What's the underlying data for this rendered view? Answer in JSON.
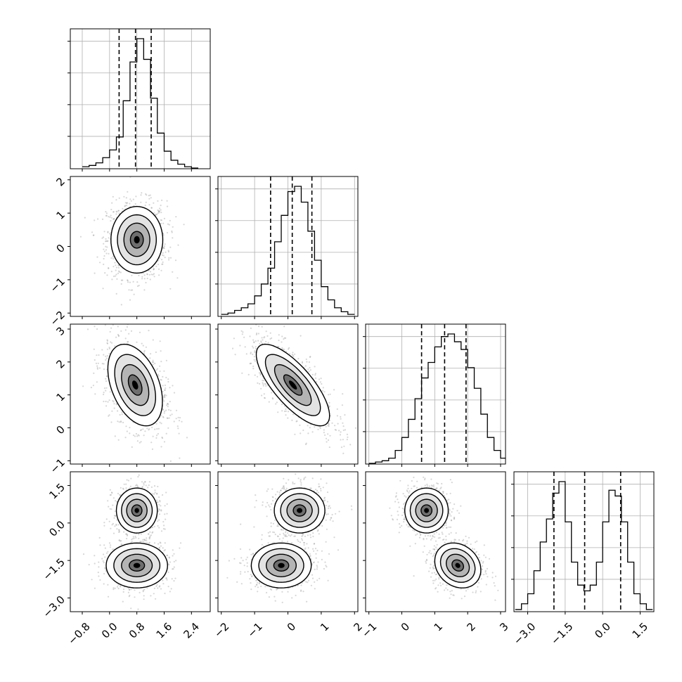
{
  "chart_data": {
    "type": "corner",
    "title": "",
    "parameters": 4,
    "axis_ranges": [
      [
        -1.15,
        2.95
      ],
      [
        -2.1,
        2.1
      ],
      [
        -1.1,
        3.15
      ],
      [
        -3.55,
        2.05
      ]
    ],
    "ticks": [
      [
        -0.8,
        0.0,
        0.8,
        1.6,
        2.4
      ],
      [
        -2,
        -1,
        0,
        1,
        2
      ],
      [
        -1,
        0,
        1,
        2,
        3
      ],
      [
        -3.0,
        -1.5,
        0.0,
        1.5
      ]
    ],
    "tick_labels": [
      [
        "−0.8",
        "0.0",
        "0.8",
        "1.6",
        "2.4"
      ],
      [
        "−2",
        "−1",
        "0",
        "1",
        "2"
      ],
      [
        "−1",
        "0",
        "1",
        "2",
        "3"
      ],
      [
        "−3.0",
        "−1.5",
        "0.0",
        "1.5"
      ]
    ],
    "bottom_tick_labels_param4": [
      "−3.0",
      "−1.5",
      "0.0",
      "1.5"
    ],
    "quantile_lines": [
      [
        0.28,
        0.76,
        1.22
      ],
      [
        -0.52,
        0.13,
        0.72
      ],
      [
        0.6,
        1.3,
        1.95
      ],
      [
        -1.95,
        -0.72,
        0.72
      ]
    ],
    "grid": true,
    "marginals": [
      {
        "param": 1,
        "bin_edges": [
          -0.8,
          -0.6,
          -0.4,
          -0.2,
          0.0,
          0.2,
          0.4,
          0.6,
          0.8,
          1.0,
          1.2,
          1.4,
          1.6,
          1.8,
          2.0,
          2.2,
          2.4,
          2.6
        ],
        "counts": [
          1,
          2,
          4,
          8,
          14,
          24,
          52,
          82,
          100,
          84,
          54,
          27,
          13,
          6,
          3,
          1,
          0
        ]
      },
      {
        "param": 2,
        "bin_edges": [
          -2.0,
          -1.8,
          -1.6,
          -1.4,
          -1.2,
          -1.0,
          -0.8,
          -0.6,
          -0.4,
          -0.2,
          0.0,
          0.2,
          0.4,
          0.6,
          0.8,
          1.0,
          1.2,
          1.4,
          1.6,
          1.8,
          2.0
        ],
        "counts": [
          1,
          2,
          4,
          6,
          9,
          15,
          24,
          36,
          56,
          76,
          94,
          98,
          86,
          64,
          42,
          22,
          12,
          6,
          3,
          1
        ]
      },
      {
        "param": 3,
        "bin_edges": [
          -1.0,
          -0.8,
          -0.6,
          -0.4,
          -0.2,
          0.0,
          0.2,
          0.4,
          0.6,
          0.8,
          1.0,
          1.2,
          1.4,
          1.6,
          1.8,
          2.0,
          2.2,
          2.4,
          2.6,
          2.8,
          3.0,
          3.2
        ],
        "counts": [
          0,
          1,
          2,
          4,
          10,
          20,
          34,
          50,
          66,
          78,
          90,
          98,
          100,
          94,
          88,
          74,
          58,
          38,
          20,
          10,
          4
        ]
      },
      {
        "param": 4,
        "bin_edges": [
          -3.5,
          -3.25,
          -3.0,
          -2.75,
          -2.5,
          -2.25,
          -2.0,
          -1.75,
          -1.5,
          -1.25,
          -1.0,
          -0.75,
          -0.5,
          -0.25,
          0.0,
          0.25,
          0.5,
          0.75,
          1.0,
          1.25,
          1.5,
          1.75,
          2.0
        ],
        "counts": [
          1,
          5,
          12,
          28,
          48,
          64,
          82,
          90,
          62,
          34,
          18,
          14,
          18,
          34,
          62,
          84,
          80,
          62,
          34,
          12,
          5,
          1
        ]
      }
    ],
    "joint_distributions": [
      {
        "x_param": 1,
        "y_param": 2,
        "modes": [
          {
            "cx": 0.8,
            "cy": 0.2,
            "sx": 0.38,
            "sy": 0.5,
            "rho": 0.0
          }
        ]
      },
      {
        "x_param": 1,
        "y_param": 3,
        "modes": [
          {
            "cx": 0.75,
            "cy": 1.3,
            "sx": 0.4,
            "sy": 0.62,
            "rho": -0.4
          }
        ]
      },
      {
        "x_param": 2,
        "y_param": 3,
        "modes": [
          {
            "cx": 0.15,
            "cy": 1.3,
            "sx": 0.55,
            "sy": 0.62,
            "rho": -0.75
          }
        ]
      },
      {
        "x_param": 1,
        "y_param": 4,
        "modes": [
          {
            "cx": 0.8,
            "cy": 0.5,
            "sx": 0.3,
            "sy": 0.45,
            "rho": 0.0
          },
          {
            "cx": 0.8,
            "cy": -1.7,
            "sx": 0.45,
            "sy": 0.45,
            "rho": 0.0
          }
        ]
      },
      {
        "x_param": 2,
        "y_param": 4,
        "modes": [
          {
            "cx": 0.35,
            "cy": 0.5,
            "sx": 0.38,
            "sy": 0.45,
            "rho": 0.0
          },
          {
            "cx": -0.2,
            "cy": -1.7,
            "sx": 0.45,
            "sy": 0.45,
            "rho": 0.0
          }
        ]
      },
      {
        "x_param": 3,
        "y_param": 4,
        "modes": [
          {
            "cx": 0.75,
            "cy": 0.5,
            "sx": 0.33,
            "sy": 0.45,
            "rho": 0.0
          },
          {
            "cx": 1.7,
            "cy": -1.7,
            "sx": 0.35,
            "sy": 0.45,
            "rho": -0.2
          }
        ]
      }
    ],
    "contour_levels_sigma": [
      0.5,
      1.0,
      1.5,
      2.0
    ],
    "colors": {
      "frame": "#000000",
      "grid": "#b0b0b0",
      "scatter": "#8c8c8c",
      "density_fill": "#000000",
      "histogram": "#000000"
    }
  }
}
